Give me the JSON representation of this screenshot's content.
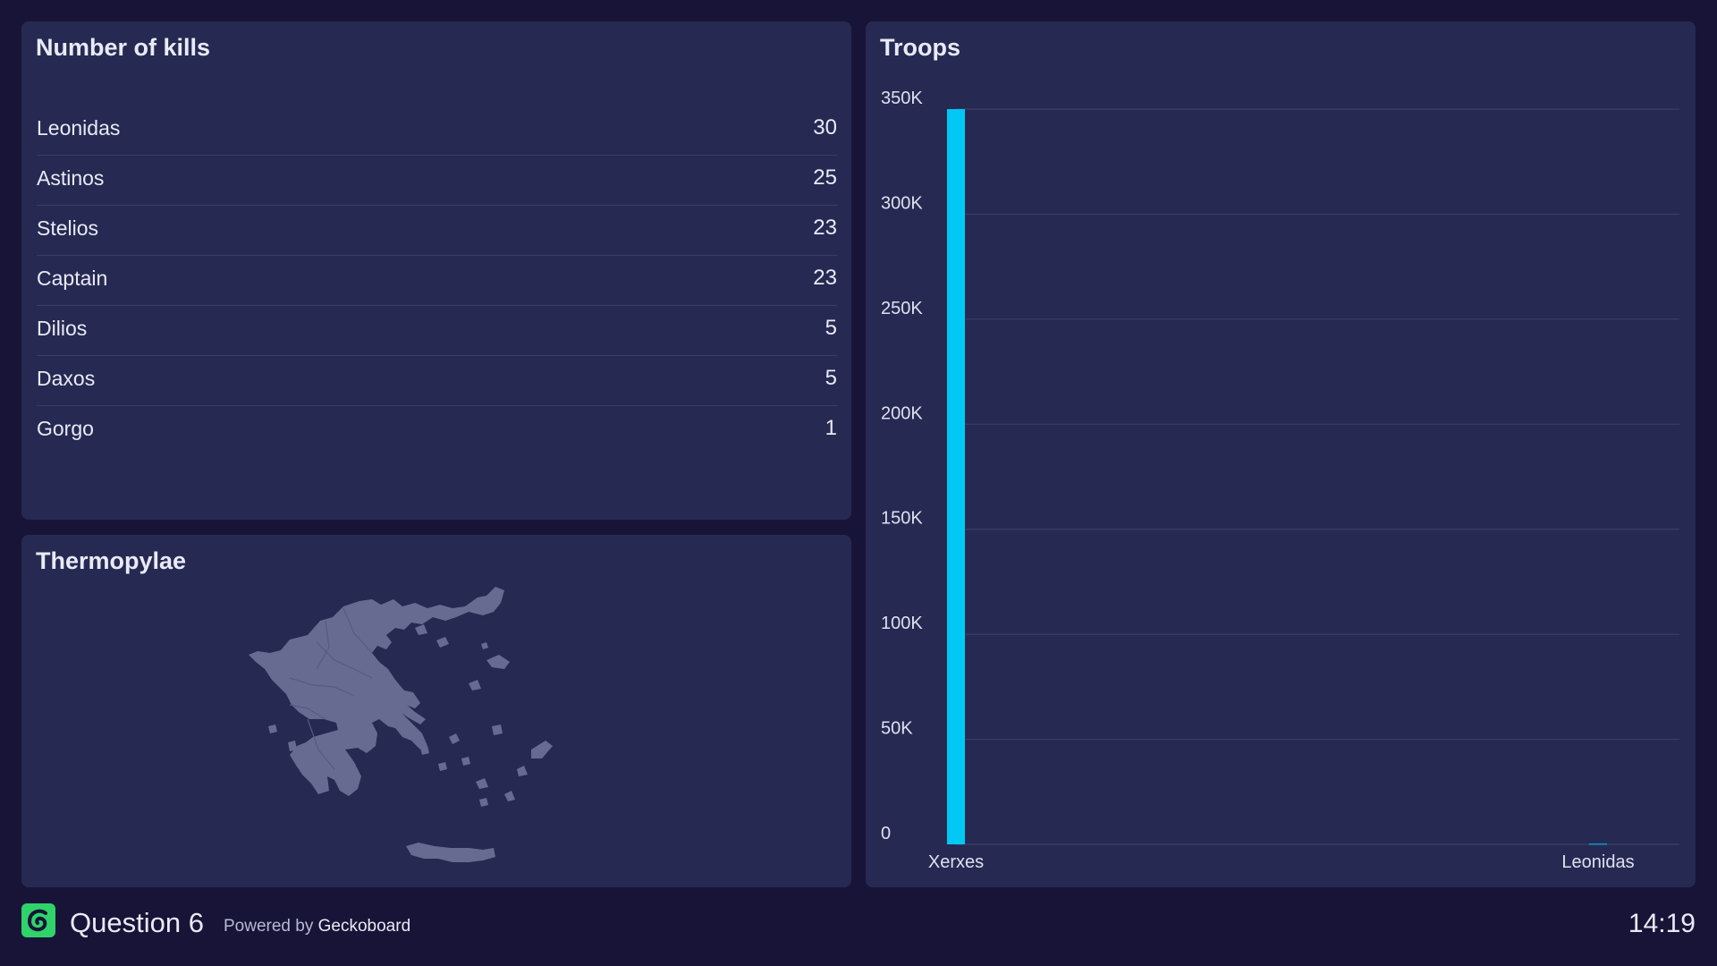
{
  "kills": {
    "title": "Number of kills",
    "rows": [
      {
        "name": "Leonidas",
        "value": "30"
      },
      {
        "name": "Astinos",
        "value": "25"
      },
      {
        "name": "Stelios",
        "value": "23"
      },
      {
        "name": "Captain",
        "value": "23"
      },
      {
        "name": "Dilios",
        "value": "5"
      },
      {
        "name": "Daxos",
        "value": "5"
      },
      {
        "name": "Gorgo",
        "value": "1"
      }
    ]
  },
  "map": {
    "title": "Thermopylae",
    "region": "Greece",
    "fill_color": "#686b91"
  },
  "troops": {
    "title": "Troops"
  },
  "chart_data": {
    "type": "bar",
    "title": "Troops",
    "categories": [
      "Xerxes",
      "Leonidas"
    ],
    "values": [
      350000,
      300
    ],
    "ylim": [
      0,
      350000
    ],
    "yticks": [
      0,
      50000,
      100000,
      150000,
      200000,
      250000,
      300000,
      350000
    ],
    "ytick_labels": [
      "0",
      "50K",
      "100K",
      "150K",
      "200K",
      "250K",
      "300K",
      "350K"
    ],
    "grid": true,
    "bar_color": "#00c8f5"
  },
  "footer": {
    "title": "Question 6",
    "powered_prefix": "Powered by",
    "powered_brand": "Geckoboard",
    "time": "14:19",
    "logo_color": "#2fd36a",
    "logo_icon": "geckoboard-logo-icon"
  }
}
